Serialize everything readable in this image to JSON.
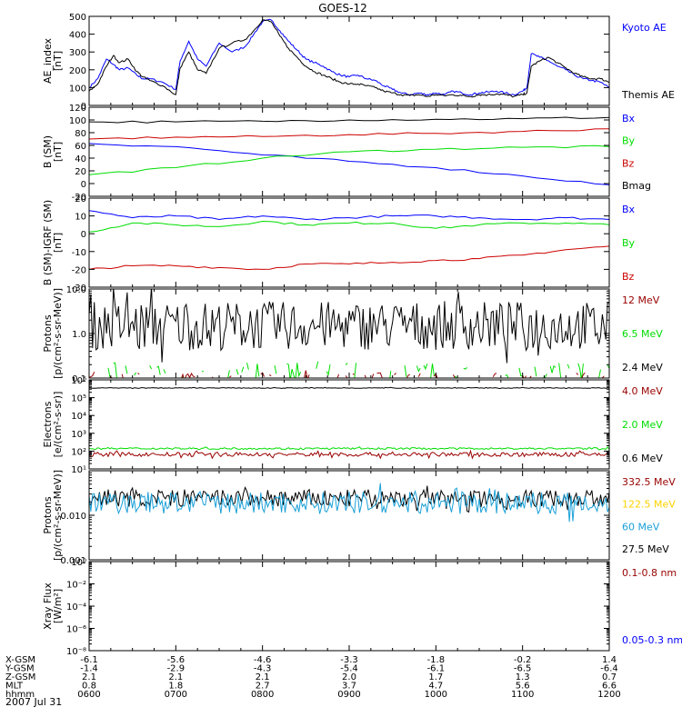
{
  "title": "GOES-12",
  "date_label": "2007 Jul 31",
  "chart_data": [
    {
      "type": "line",
      "ylabel_lines": [
        "AE_index",
        "[nT]"
      ],
      "ylim": [
        0,
        500
      ],
      "yticks": [
        "0",
        "100",
        "200",
        "300",
        "400",
        "500"
      ],
      "scale": "linear",
      "series": [
        {
          "name": "Kyoto AE",
          "color": "#0000ff",
          "x": [
            0,
            0.1,
            0.2,
            0.28,
            0.35,
            0.45,
            0.55,
            0.62,
            0.7,
            0.85,
            1.0,
            1.05,
            1.15,
            1.25,
            1.35,
            1.5,
            1.65,
            1.8,
            1.9,
            2.0,
            2.1,
            2.2,
            2.3,
            2.4,
            2.5,
            2.6,
            2.7,
            2.8,
            2.9,
            3.0,
            3.1,
            3.2,
            3.3,
            3.4,
            3.5,
            3.6,
            3.7,
            3.8,
            3.9,
            4.0,
            4.1,
            4.2,
            4.3,
            4.4,
            4.5,
            4.6,
            4.7,
            4.8,
            4.9,
            5.0,
            5.05,
            5.1,
            5.2,
            5.3,
            5.4,
            5.5,
            5.6,
            5.7,
            5.8,
            5.9,
            6.0
          ],
          "y": [
            100,
            150,
            260,
            230,
            200,
            210,
            170,
            150,
            150,
            130,
            90,
            250,
            360,
            260,
            220,
            350,
            300,
            330,
            400,
            470,
            480,
            420,
            360,
            310,
            260,
            240,
            220,
            190,
            170,
            160,
            170,
            150,
            140,
            110,
            90,
            70,
            60,
            70,
            60,
            70,
            60,
            80,
            70,
            60,
            70,
            75,
            80,
            70,
            60,
            80,
            100,
            290,
            270,
            250,
            220,
            200,
            170,
            150,
            140,
            130,
            100
          ]
        },
        {
          "name": "Themis AE",
          "color": "#000000",
          "x": [
            0,
            0.1,
            0.2,
            0.28,
            0.35,
            0.45,
            0.55,
            0.62,
            0.7,
            0.85,
            1.0,
            1.05,
            1.15,
            1.25,
            1.35,
            1.5,
            1.65,
            1.8,
            1.9,
            2.0,
            2.1,
            2.2,
            2.3,
            2.4,
            2.5,
            2.6,
            2.7,
            2.8,
            2.9,
            3.0,
            3.1,
            3.2,
            3.3,
            3.4,
            3.5,
            3.6,
            3.7,
            3.8,
            3.9,
            4.0,
            4.1,
            4.2,
            4.3,
            4.4,
            4.5,
            4.6,
            4.7,
            4.8,
            4.9,
            5.0,
            5.05,
            5.1,
            5.2,
            5.3,
            5.4,
            5.5,
            5.6,
            5.7,
            5.8,
            5.9,
            6.0
          ],
          "y": [
            80,
            120,
            220,
            280,
            240,
            260,
            190,
            160,
            140,
            110,
            60,
            210,
            300,
            200,
            180,
            320,
            350,
            370,
            420,
            480,
            470,
            390,
            320,
            270,
            220,
            190,
            170,
            150,
            130,
            120,
            120,
            110,
            100,
            80,
            70,
            60,
            55,
            60,
            50,
            60,
            55,
            60,
            55,
            50,
            60,
            60,
            65,
            60,
            50,
            60,
            70,
            220,
            250,
            270,
            240,
            210,
            180,
            160,
            150,
            150,
            130
          ]
        }
      ],
      "legend": [
        {
          "text": "Kyoto AE",
          "color": "#0000ff"
        },
        {
          "text": "Themis AE",
          "color": "#000000"
        }
      ]
    },
    {
      "type": "line",
      "ylabel_lines": [
        "B (SM)",
        "[nT]"
      ],
      "ylim": [
        -20,
        120
      ],
      "yticks": [
        "-20",
        "0",
        "20",
        "40",
        "60",
        "80",
        "100",
        "120"
      ],
      "scale": "linear",
      "series": [
        {
          "name": "Bx",
          "color": "#0000ff",
          "x": [
            0,
            1,
            2,
            3,
            4,
            5,
            6
          ],
          "y": [
            63,
            58,
            45,
            35,
            25,
            12,
            -2
          ]
        },
        {
          "name": "By",
          "color": "#00dd00",
          "x": [
            0,
            1,
            2,
            3,
            4,
            5,
            6
          ],
          "y": [
            14,
            25,
            40,
            50,
            54,
            57,
            58
          ]
        },
        {
          "name": "Bz",
          "color": "#cc0000",
          "x": [
            0,
            1,
            2,
            3,
            4,
            5,
            6
          ],
          "y": [
            70,
            73,
            74,
            77,
            79,
            82,
            86
          ]
        },
        {
          "name": "Bmag",
          "color": "#000000",
          "x": [
            0,
            1,
            2,
            3,
            4,
            5,
            6
          ],
          "y": [
            97,
            97,
            98,
            100,
            101,
            102,
            104
          ]
        }
      ],
      "legend": [
        {
          "text": "Bx",
          "color": "#0000ff"
        },
        {
          "text": "By",
          "color": "#00dd00"
        },
        {
          "text": "Bz",
          "color": "#cc0000"
        },
        {
          "text": "Bmag",
          "color": "#000000"
        }
      ]
    },
    {
      "type": "line",
      "ylabel_lines": [
        "B (SM)-IGRF (SM)",
        "[nT]"
      ],
      "ylim": [
        -30,
        20
      ],
      "yticks": [
        "-30",
        "-20",
        "-10",
        "0",
        "10",
        "20"
      ],
      "scale": "linear",
      "series": [
        {
          "name": "Bx",
          "color": "#0000ff",
          "x": [
            0,
            0.5,
            1,
            1.5,
            2,
            2.5,
            3,
            3.5,
            4,
            4.5,
            5,
            5.5,
            6
          ],
          "y": [
            13,
            9,
            10,
            8,
            10,
            8,
            9,
            10,
            10,
            9,
            8,
            9,
            8
          ]
        },
        {
          "name": "By",
          "color": "#00dd00",
          "x": [
            0,
            0.5,
            1,
            1.5,
            2,
            2.5,
            3,
            3.5,
            4,
            4.5,
            5,
            5.5,
            6
          ],
          "y": [
            1,
            6,
            5,
            4,
            7,
            5,
            6,
            6,
            3,
            5,
            6,
            6,
            5
          ]
        },
        {
          "name": "Bz",
          "color": "#cc0000",
          "x": [
            0,
            0.5,
            1,
            1.5,
            2,
            2.5,
            3,
            3.5,
            4,
            4.5,
            5,
            5.5,
            6
          ],
          "y": [
            -20,
            -18,
            -18,
            -19,
            -20,
            -17,
            -17,
            -16,
            -15,
            -14,
            -12,
            -9,
            -7
          ]
        }
      ],
      "legend": [
        {
          "text": "Bx",
          "color": "#0000ff"
        },
        {
          "text": "By",
          "color": "#00dd00"
        },
        {
          "text": "Bz",
          "color": "#cc0000"
        }
      ]
    },
    {
      "type": "line",
      "ylabel_lines": [
        "Protons",
        "[p/(cm²-s-sr-MeV)]"
      ],
      "ylim": [
        0.1,
        10.0
      ],
      "yticks": [
        "0.1",
        "1.0",
        "10.0"
      ],
      "scale": "log",
      "noisy": true,
      "series": [
        {
          "name": "2.4 MeV",
          "color": "#000000",
          "base": 1.5,
          "spread": 0.55
        },
        {
          "name": "6.5 MeV",
          "color": "#00dd00",
          "base": 0.14,
          "spread": 0.2,
          "sparse": true
        },
        {
          "name": "12 MeV",
          "color": "#990000",
          "base": 0.11,
          "spread": 0.08,
          "sparse": true
        }
      ],
      "legend": [
        {
          "text": "12 MeV",
          "color": "#990000"
        },
        {
          "text": "6.5 MeV",
          "color": "#00dd00"
        },
        {
          "text": "2.4 MeV",
          "color": "#000000"
        }
      ]
    },
    {
      "type": "line",
      "ylabel_lines": [
        "Electrons",
        "[e/(cm²-s-sr)]"
      ],
      "ylim": [
        10,
        1000000
      ],
      "yticks": [
        "10¹",
        "10²",
        "10³",
        "10⁴",
        "10⁵",
        "10⁶"
      ],
      "scale": "log",
      "noisy": true,
      "series": [
        {
          "name": "0.6 MeV",
          "color": "#000000",
          "base": 350000,
          "spread": 0.02
        },
        {
          "name": "2.0 MeV",
          "color": "#00dd00",
          "base": 140,
          "spread": 0.05
        },
        {
          "name": "4.0 MeV",
          "color": "#990000",
          "base": 65,
          "spread": 0.12
        }
      ],
      "legend": [
        {
          "text": "4.0 MeV",
          "color": "#990000"
        },
        {
          "text": "2.0 MeV",
          "color": "#00dd00"
        },
        {
          "text": "0.6 MeV",
          "color": "#000000"
        }
      ]
    },
    {
      "type": "line",
      "ylabel_lines": [
        "Protons",
        "[p/(cm²-s-sr-MeV)]"
      ],
      "ylim": [
        0.001,
        0.1
      ],
      "yticks": [
        "0.001",
        "0.010",
        ""
      ],
      "scale": "log",
      "noisy": true,
      "series": [
        {
          "name": "27.5 MeV",
          "color": "#000000",
          "base": 0.024,
          "spread": 0.2
        },
        {
          "name": "60 MeV",
          "color": "#1aa0d8",
          "base": 0.019,
          "spread": 0.25
        }
      ],
      "legend": [
        {
          "text": "332.5 MeV",
          "color": "#990000"
        },
        {
          "text": "122.5 MeV",
          "color": "#ffd200"
        },
        {
          "text": "60 MeV",
          "color": "#1aa0d8"
        },
        {
          "text": "27.5 MeV",
          "color": "#000000"
        }
      ]
    },
    {
      "type": "line",
      "ylabel_lines": [
        "Xray Flux",
        "[W/m²]"
      ],
      "ylim": [
        1e-08,
        1
      ],
      "yticks": [
        "10⁻⁸",
        "10⁻⁶",
        "10⁻⁴",
        "10⁻²",
        "10⁰"
      ],
      "scale": "log",
      "series": [],
      "legend": [
        {
          "text": "0.1-0.8 nm",
          "color": "#990000"
        },
        {
          "text": "0.05-0.3 nm",
          "color": "#0000ff"
        }
      ]
    }
  ],
  "ephemeris": {
    "row_labels": [
      "X-GSM",
      "Y-GSM",
      "Z-GSM",
      "MLT",
      "hhmm"
    ],
    "columns": [
      [
        "-6.1",
        "-1.4",
        "2.1",
        "0.8",
        "0600"
      ],
      [
        "-5.6",
        "-2.9",
        "2.1",
        "1.8",
        "0700"
      ],
      [
        "-4.6",
        "-4.3",
        "2.1",
        "2.7",
        "0800"
      ],
      [
        "-3.3",
        "-5.4",
        "2.0",
        "3.7",
        "0900"
      ],
      [
        "-1.8",
        "-6.1",
        "1.7",
        "4.7",
        "1000"
      ],
      [
        "-0.2",
        "-6.5",
        "1.3",
        "5.6",
        "1100"
      ],
      [
        "1.4",
        "-6.4",
        "0.7",
        "6.6",
        "1200"
      ]
    ]
  }
}
